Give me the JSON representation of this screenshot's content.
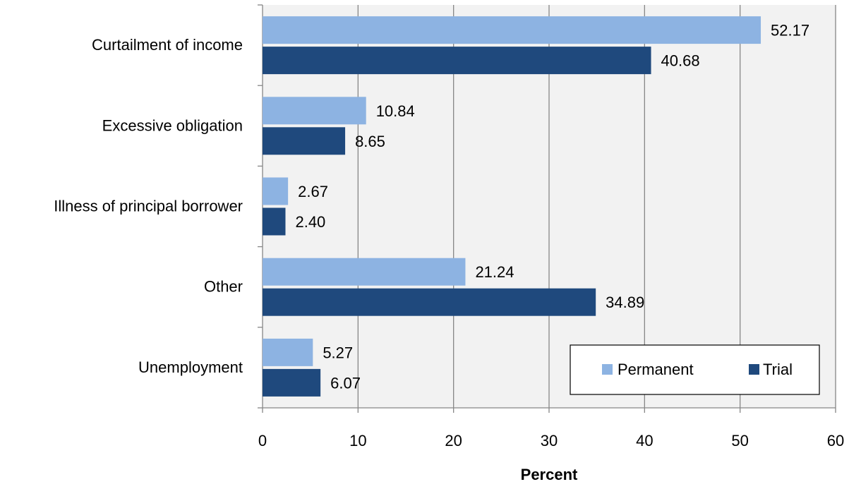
{
  "chart_data": {
    "type": "bar",
    "orientation": "horizontal",
    "categories": [
      "Curtailment of income",
      "Excessive obligation",
      "Illness of principal borrower",
      "Other",
      "Unemployment"
    ],
    "series": [
      {
        "name": "Permanent",
        "color": "#8db3e2",
        "values": [
          52.17,
          10.84,
          2.67,
          21.24,
          5.27
        ],
        "labels": [
          "52.17",
          "10.84",
          "2.67",
          "21.24",
          "5.27"
        ]
      },
      {
        "name": "Trial",
        "color": "#1f497d",
        "values": [
          40.68,
          8.65,
          2.4,
          34.89,
          6.07
        ],
        "labels": [
          "40.68",
          "8.65",
          "2.40",
          "34.89",
          "6.07"
        ]
      }
    ],
    "xlabel": "Percent",
    "xlim": [
      0,
      60
    ],
    "xticks": [
      "0",
      "10",
      "20",
      "30",
      "40",
      "50",
      "60"
    ],
    "grid": true,
    "legend_position": "bottom-right",
    "plot_background": "#f2f2f2",
    "gridline_color": "#868686"
  }
}
